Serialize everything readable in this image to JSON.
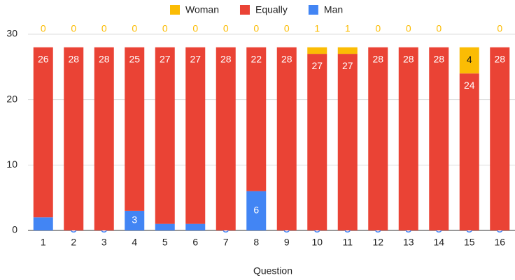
{
  "chart_data": {
    "type": "stacked_bar",
    "x_label": "Question",
    "categories": [
      "1",
      "2",
      "3",
      "4",
      "5",
      "6",
      "7",
      "8",
      "9",
      "10",
      "11",
      "12",
      "13",
      "14",
      "15",
      "16"
    ],
    "series": [
      {
        "name": "Man",
        "color": "#4285f4",
        "values": [
          2,
          0,
          0,
          3,
          1,
          1,
          0,
          6,
          0,
          0,
          0,
          0,
          0,
          0,
          0,
          0
        ]
      },
      {
        "name": "Equally",
        "color": "#ea4335",
        "values": [
          26,
          28,
          28,
          25,
          27,
          27,
          28,
          22,
          28,
          27,
          27,
          28,
          28,
          28,
          24,
          28
        ]
      },
      {
        "name": "Woman",
        "color": "#fbbc04",
        "values": [
          0,
          0,
          0,
          0,
          0,
          0,
          0,
          0,
          0,
          1,
          1,
          0,
          0,
          0,
          4,
          0
        ]
      }
    ],
    "legend_order": [
      "Woman",
      "Equally",
      "Man"
    ],
    "ylim": [
      0,
      30
    ],
    "yticks": [
      0,
      10,
      20,
      30
    ],
    "grid": true,
    "legend": "top"
  }
}
